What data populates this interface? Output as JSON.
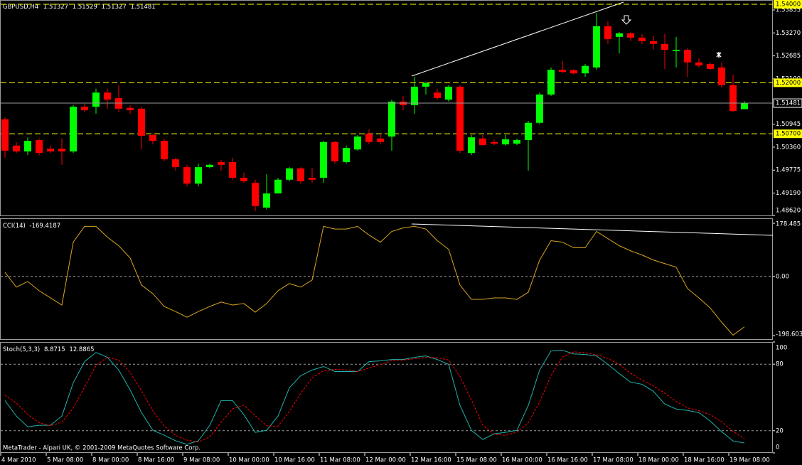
{
  "chart_data": [
    {
      "type": "candlestick",
      "title": "GBPUSD,H4",
      "up_color": "#00ff00",
      "down_color": "#ff0000",
      "open": [
        1.5107,
        1.504,
        1.5025,
        1.5054,
        1.5032,
        1.5032,
        1.5025,
        1.5139,
        1.5139,
        1.5175,
        1.5161,
        1.5136,
        1.5134,
        1.5067,
        1.5052,
        1.5005,
        1.4985,
        1.4943,
        1.4985,
        1.4998,
        1.4998,
        1.4958,
        1.4945,
        1.4882,
        1.4918,
        1.4953,
        1.4982,
        1.4958,
        1.4958,
        1.5049,
        1.4998,
        1.503,
        1.507,
        1.5058,
        1.5063,
        1.5152,
        1.5143,
        1.519,
        1.5175,
        1.5157,
        1.519,
        1.5021,
        1.5058,
        1.5049,
        1.5043,
        1.5045,
        1.5054,
        1.5098,
        1.517,
        1.5233,
        1.5232,
        1.5224,
        1.5239,
        1.5344,
        1.5317,
        1.5326,
        1.5315,
        1.5306,
        1.5299,
        1.5281,
        1.5284,
        1.5252,
        1.5248,
        1.5239,
        1.5194,
        1.51327
      ],
      "high": [
        1.5112,
        1.5049,
        1.5061,
        1.5058,
        1.504,
        1.5058,
        1.5143,
        1.5146,
        1.5185,
        1.5185,
        1.5194,
        1.5143,
        1.5139,
        1.507,
        1.5058,
        1.5009,
        1.4991,
        1.4994,
        1.4994,
        1.5003,
        1.5009,
        1.4971,
        1.4953,
        1.4967,
        1.4958,
        1.4985,
        1.4985,
        1.4982,
        1.5052,
        1.5052,
        1.504,
        1.5067,
        1.5081,
        1.5067,
        1.5157,
        1.5166,
        1.5215,
        1.5203,
        1.5185,
        1.5194,
        1.5194,
        1.5067,
        1.5067,
        1.5056,
        1.5067,
        1.5058,
        1.5103,
        1.5175,
        1.5239,
        1.5255,
        1.5235,
        1.5248,
        1.5378,
        1.5357,
        1.5329,
        1.5329,
        1.5324,
        1.532,
        1.5324,
        1.5317,
        1.5288,
        1.5262,
        1.5252,
        1.5252,
        1.5221,
        1.51529
      ],
      "low": [
        1.5009,
        1.5021,
        1.5016,
        1.5016,
        1.5021,
        1.4991,
        1.5021,
        1.5125,
        1.5121,
        1.5134,
        1.5125,
        1.5121,
        1.503,
        1.5043,
        1.5,
        1.4976,
        1.4936,
        1.4936,
        1.4982,
        1.4976,
        1.4953,
        1.4945,
        1.4873,
        1.4877,
        1.4918,
        1.4949,
        1.4943,
        1.4945,
        1.4945,
        1.4994,
        1.4994,
        1.5027,
        1.5043,
        1.5043,
        1.5027,
        1.513,
        1.5121,
        1.517,
        1.5157,
        1.5152,
        1.5021,
        1.5016,
        1.504,
        1.5041,
        1.504,
        1.5041,
        1.4976,
        1.5094,
        1.5166,
        1.5224,
        1.5221,
        1.5215,
        1.5233,
        1.5299,
        1.5275,
        1.5306,
        1.5299,
        1.5284,
        1.5235,
        1.5239,
        1.5215,
        1.5239,
        1.5232,
        1.5188,
        1.5125,
        1.51327
      ],
      "close": [
        1.5027,
        1.5025,
        1.5052,
        1.5021,
        1.5025,
        1.5025,
        1.5139,
        1.513,
        1.5175,
        1.5157,
        1.5134,
        1.513,
        1.5065,
        1.5052,
        1.5005,
        1.4985,
        1.4943,
        1.4985,
        1.4991,
        1.4991,
        1.4958,
        1.4949,
        1.4886,
        1.4918,
        1.4953,
        1.4982,
        1.4949,
        1.4953,
        1.5049,
        1.5,
        1.5034,
        1.5063,
        1.5049,
        1.5049,
        1.5152,
        1.5143,
        1.519,
        1.5199,
        1.5161,
        1.519,
        1.5027,
        1.5061,
        1.5041,
        1.5045,
        1.5056,
        1.5054,
        1.5098,
        1.517,
        1.5233,
        1.5228,
        1.5224,
        1.5243,
        1.5344,
        1.5311,
        1.5326,
        1.5315,
        1.5306,
        1.5299,
        1.5284,
        1.5284,
        1.5252,
        1.5244,
        1.5235,
        1.5194,
        1.5128,
        1.51481
      ],
      "ylim": [
        1.4862,
        1.54
      ],
      "yticks": [
        1.53855,
        {
          "value": 1.5327,
          "label": "1.53270"
        },
        1.52685,
        {
          "value": 1.521,
          "label": "1.52100"
        },
        1.50945,
        {
          "value": 1.5036,
          "label": "1.50360"
        },
        1.49775,
        {
          "value": 1.4919,
          "label": "1.49190"
        },
        {
          "value": 1.4862,
          "label": "1.48620"
        }
      ],
      "levels": [
        {
          "value": 1.54,
          "label": "1.54000"
        },
        {
          "value": 1.52,
          "label": "1.52000"
        },
        {
          "value": 1.507,
          "label": "1.50700"
        }
      ],
      "level_color": "#ffff00",
      "xticks": [
        {
          "value": 0,
          "label": "4 Mar 2010"
        },
        {
          "value": 4,
          "label": "5 Mar 08:00"
        },
        {
          "value": 8,
          "label": "8 Mar 00:00"
        },
        {
          "value": 12,
          "label": "8 Mar 16:00"
        },
        {
          "value": 16,
          "label": "9 Mar 08:00"
        },
        {
          "value": 20,
          "label": "10 Mar 00:00"
        },
        {
          "value": 24,
          "label": "10 Mar 16:00"
        },
        {
          "value": 28,
          "label": "11 Mar 08:00"
        },
        {
          "value": 32,
          "label": "12 Mar 00:00"
        },
        {
          "value": 36,
          "label": "12 Mar 16:00"
        },
        {
          "value": 40,
          "label": "15 Mar 08:00"
        },
        {
          "value": 44,
          "label": "16 Mar 00:00"
        },
        {
          "value": 48,
          "label": "16 Mar 16:00"
        },
        {
          "value": 52,
          "label": "17 Mar 08:00"
        },
        {
          "value": 56,
          "label": "18 Mar 00:00"
        },
        {
          "value": 60,
          "label": "18 Mar 16:00"
        },
        {
          "value": 64,
          "label": "19 Mar 08:00"
        }
      ]
    },
    {
      "type": "line",
      "title": "CCI(14)",
      "series": [
        {
          "color": "#daa520",
          "values": [
            14,
            -36,
            -17,
            -48,
            -72,
            -96,
            115,
            168,
            168,
            132,
            103,
            62,
            -29,
            -58,
            -101,
            -118,
            -137,
            -118,
            -101,
            -86,
            -96,
            -91,
            -120,
            -91,
            -48,
            -24,
            -36,
            -12,
            168,
            159,
            159,
            168,
            139,
            115,
            151,
            163,
            168,
            159,
            120,
            91,
            -29,
            -77,
            -77,
            -72,
            -72,
            -77,
            -53,
            55,
            120,
            115,
            96,
            96,
            151,
            127,
            103,
            86,
            72,
            55,
            43,
            31,
            -41,
            -72,
            -106,
            -154,
            -197,
            -169.4187
          ]
        }
      ],
      "ylim": [
        -198.603,
        178.485
      ],
      "yticks": [
        178.485,
        {
          "value": 0,
          "label": "0.00"
        },
        -198.603
      ],
      "levels": [
        0
      ]
    },
    {
      "type": "line",
      "title": "Stoch(5,3,3)",
      "series": [
        {
          "color": "#20b2aa",
          "values": [
            47.2,
            33.2,
            23.6,
            24.9,
            24.9,
            33.2,
            63.2,
            82.3,
            90.6,
            86.2,
            74.7,
            56.8,
            36.4,
            20.4,
            16.0,
            10.9,
            7.7,
            10.9,
            24.9,
            47.2,
            47.2,
            34.5,
            18.5,
            20.4,
            33.2,
            58.7,
            69.6,
            74.7,
            77.9,
            73.4,
            73.4,
            73.4,
            82.3,
            83.0,
            84.2,
            84.2,
            86.2,
            87.4,
            84.2,
            79.8,
            42.8,
            20.4,
            12.1,
            17.2,
            18.5,
            20.4,
            42.8,
            74.7,
            91.9,
            92.5,
            89.3,
            88.7,
            87.4,
            79.8,
            71.5,
            63.8,
            61.9,
            55.5,
            44.0,
            39.6,
            38.3,
            36.4,
            28.7,
            19.1,
            10.8,
            8.8715
          ]
        },
        {
          "color": "#ff0000",
          "dashed": true,
          "values": [
            52,
            45,
            34.7,
            27.2,
            24.5,
            27.7,
            40.4,
            59.6,
            78.7,
            86.4,
            83.8,
            72.6,
            56.0,
            37.9,
            24.3,
            15.8,
            11.5,
            9.8,
            14.5,
            27.7,
            39.8,
            43.0,
            33.4,
            24.5,
            24.0,
            37.4,
            53.8,
            67.7,
            74.1,
            75.3,
            74.9,
            73.4,
            76.4,
            79.6,
            83.2,
            83.8,
            84.9,
            85.9,
            85.9,
            83.8,
            68.9,
            47.7,
            25.1,
            16.6,
            15.9,
            18.7,
            27.2,
            46.0,
            69.8,
            86.4,
            91.2,
            90.2,
            88.5,
            85.3,
            79.6,
            71.7,
            65.7,
            60.4,
            53.8,
            46.4,
            40.6,
            38.1,
            34.5,
            28.1,
            19.5,
            12.8865
          ]
        }
      ],
      "ylim": [
        0,
        100
      ],
      "yticks": [
        100,
        80,
        20,
        0
      ],
      "levels": [
        80,
        20
      ]
    }
  ],
  "footer": "MetaTrader - Alpari UK, © 2001-2009 MetaQuotes Software Corp."
}
